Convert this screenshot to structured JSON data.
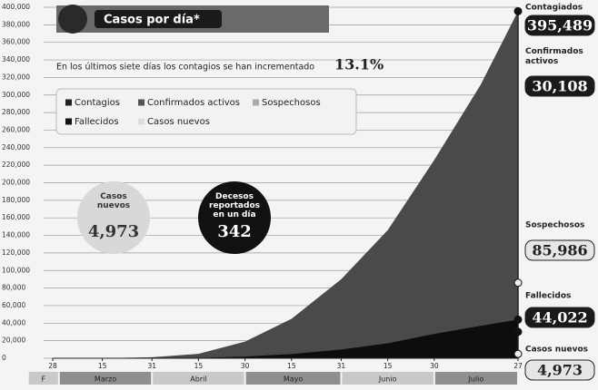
{
  "chart_data": {
    "type": "area",
    "title": "Casos por día*",
    "note": "En los últimos siete días los contagios se han incrementado",
    "note_value": 13.1,
    "note_value_label": "13.1%",
    "x": [
      0,
      16,
      32,
      47,
      62,
      77,
      93,
      108,
      123,
      138,
      150
    ],
    "series": [
      {
        "name": "Contagios",
        "color": "#4a4a4a",
        "values": [
          0,
          100,
          1200,
          5000,
          19000,
          45000,
          90000,
          146000,
          226000,
          312000,
          395489
        ]
      },
      {
        "name": "Fallecidos",
        "color": "#0d0d0d",
        "values": [
          0,
          0,
          30,
          400,
          1900,
          4800,
          9900,
          17100,
          27800,
          36900,
          44022
        ]
      }
    ],
    "legend": [
      {
        "name": "Contagios",
        "color": "#222"
      },
      {
        "name": "Confirmados activos",
        "color": "#555"
      },
      {
        "name": "Sospechosos",
        "color": "#aaa"
      },
      {
        "name": "Fallecidos",
        "color": "#111"
      },
      {
        "name": "Casos nuevos",
        "color": "#ddd"
      }
    ],
    "endpoints": {
      "names": [
        "Contagiados",
        "Confirmados activos",
        "Sospechosos",
        "Fallecidos",
        "Casos nuevos"
      ],
      "values": [
        395489,
        30108,
        85986,
        44022,
        4973
      ],
      "value_labels": [
        "395,489",
        "30,108",
        "85,986",
        "44,022",
        "4,973"
      ]
    },
    "bubbles": [
      {
        "text": "Casos nuevos",
        "value": 4973,
        "value_label": "4,973"
      },
      {
        "text": "Decesos reportados en un día",
        "value": 342,
        "value_label": "342"
      }
    ],
    "ylim": [
      0,
      400000
    ],
    "yticks": [
      {
        "value": 0,
        "label": "0"
      },
      {
        "value": 20000,
        "label": "20,000"
      },
      {
        "value": 40000,
        "label": "40,000"
      },
      {
        "value": 60000,
        "label": "60,000"
      },
      {
        "value": 80000,
        "label": "80,000"
      },
      {
        "value": 100000,
        "label": "100,000"
      },
      {
        "value": 120000,
        "label": "120,000"
      },
      {
        "value": 140000,
        "label": "140,000"
      },
      {
        "value": 160000,
        "label": "160,000"
      },
      {
        "value": 180000,
        "label": "180,000"
      },
      {
        "value": 200000,
        "label": "200,000"
      },
      {
        "value": 220000,
        "label": "220,000"
      },
      {
        "value": 240000,
        "label": "240,000"
      },
      {
        "value": 260000,
        "label": "260,000"
      },
      {
        "value": 280000,
        "label": "280,000"
      },
      {
        "value": 300000,
        "label": "300,000"
      },
      {
        "value": 320000,
        "label": "320,000"
      },
      {
        "value": 340000,
        "label": "340,000"
      },
      {
        "value": 360000,
        "label": "360,000"
      },
      {
        "value": 380000,
        "label": "380,000"
      },
      {
        "value": 400000,
        "label": "400,000"
      }
    ],
    "xlim": [
      0,
      150
    ],
    "xticks": [
      {
        "value": 0,
        "label": "28"
      },
      {
        "value": 16,
        "label": "15"
      },
      {
        "value": 32,
        "label": "31"
      },
      {
        "value": 47,
        "label": "15"
      },
      {
        "value": 62,
        "label": "30"
      },
      {
        "value": 77,
        "label": "15"
      },
      {
        "value": 93,
        "label": "31"
      },
      {
        "value": 108,
        "label": "15"
      },
      {
        "value": 123,
        "label": "30"
      },
      {
        "value": 150,
        "label": "27"
      }
    ],
    "months": [
      "F",
      "Marzo",
      "Abril",
      "Mayo",
      "Junio",
      "Julio"
    ],
    "grid": true
  }
}
